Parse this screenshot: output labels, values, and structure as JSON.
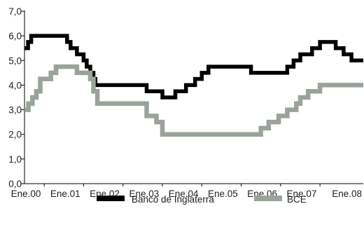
{
  "chart_data": {
    "type": "line",
    "title": "",
    "xlabel": "",
    "ylabel": "",
    "ylim": [
      0,
      7
    ],
    "xlim": [
      0,
      8.6
    ],
    "grid": false,
    "legend_position": "bottom",
    "y_ticks": [
      "0,0",
      "1,0",
      "2,0",
      "3,0",
      "4,0",
      "5,0",
      "6,0",
      "7,0"
    ],
    "x_ticks": [
      "Ene.00",
      "Ene.01",
      "Ene.02",
      "Ene.03",
      "Ene.04",
      "Ene.05",
      "Ene.06",
      "Ene.07",
      "Ene.08"
    ],
    "series": [
      {
        "name": "Banco de Inglaterra",
        "color": "#000000",
        "step": true,
        "points": [
          [
            0.0,
            5.5
          ],
          [
            0.09,
            5.75
          ],
          [
            0.17,
            6.0
          ],
          [
            1.0,
            6.0
          ],
          [
            1.08,
            5.75
          ],
          [
            1.17,
            5.5
          ],
          [
            1.33,
            5.25
          ],
          [
            1.5,
            5.0
          ],
          [
            1.58,
            4.75
          ],
          [
            1.67,
            4.5
          ],
          [
            1.75,
            4.25
          ],
          [
            1.8,
            4.0
          ],
          [
            2.0,
            4.0
          ],
          [
            3.0,
            4.0
          ],
          [
            3.1,
            3.75
          ],
          [
            3.5,
            3.5
          ],
          [
            3.83,
            3.75
          ],
          [
            4.1,
            4.0
          ],
          [
            4.33,
            4.25
          ],
          [
            4.5,
            4.5
          ],
          [
            4.67,
            4.75
          ],
          [
            5.0,
            4.75
          ],
          [
            5.67,
            4.75
          ],
          [
            5.75,
            4.5
          ],
          [
            6.0,
            4.5
          ],
          [
            6.5,
            4.5
          ],
          [
            6.67,
            4.75
          ],
          [
            6.83,
            5.0
          ],
          [
            7.0,
            5.25
          ],
          [
            7.3,
            5.5
          ],
          [
            7.5,
            5.75
          ],
          [
            7.9,
            5.5
          ],
          [
            8.1,
            5.25
          ],
          [
            8.3,
            5.0
          ],
          [
            8.6,
            5.0
          ]
        ]
      },
      {
        "name": "BCE",
        "color": "#9aa39a",
        "step": true,
        "points": [
          [
            0.0,
            3.0
          ],
          [
            0.1,
            3.25
          ],
          [
            0.2,
            3.5
          ],
          [
            0.3,
            3.75
          ],
          [
            0.4,
            4.25
          ],
          [
            0.67,
            4.5
          ],
          [
            0.8,
            4.75
          ],
          [
            1.0,
            4.75
          ],
          [
            1.33,
            4.5
          ],
          [
            1.67,
            4.25
          ],
          [
            1.75,
            3.75
          ],
          [
            1.85,
            3.25
          ],
          [
            2.0,
            3.25
          ],
          [
            3.0,
            3.25
          ],
          [
            3.1,
            2.75
          ],
          [
            3.35,
            2.5
          ],
          [
            3.5,
            2.0
          ],
          [
            4.0,
            2.0
          ],
          [
            5.0,
            2.0
          ],
          [
            5.9,
            2.0
          ],
          [
            6.0,
            2.25
          ],
          [
            6.2,
            2.5
          ],
          [
            6.45,
            2.75
          ],
          [
            6.67,
            3.0
          ],
          [
            6.9,
            3.25
          ],
          [
            7.0,
            3.5
          ],
          [
            7.2,
            3.75
          ],
          [
            7.5,
            4.0
          ],
          [
            8.0,
            4.0
          ],
          [
            8.6,
            4.0
          ]
        ]
      }
    ]
  }
}
